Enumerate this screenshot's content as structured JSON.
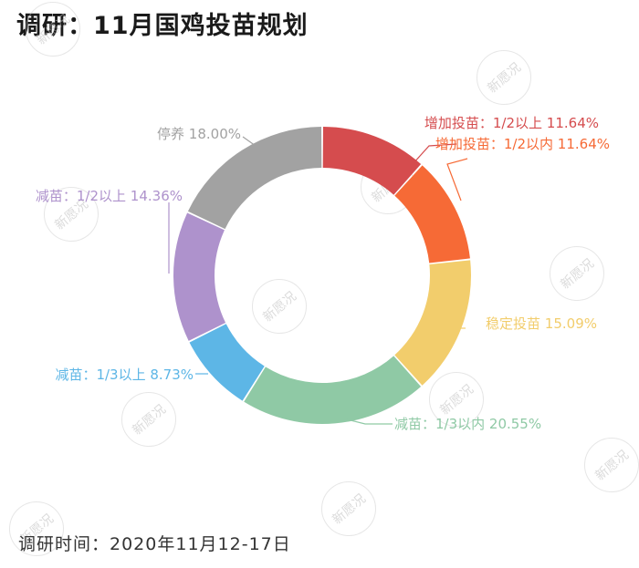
{
  "title": "调研：11月国鸡投苗规划",
  "footer": "调研时间：2020年11月12-17日",
  "watermark_text": "新愿况",
  "chart_data": {
    "type": "pie",
    "donut": true,
    "unit": "%",
    "slices": [
      {
        "label": "增加投苗：1/2以上",
        "value": 11.64,
        "display": "11.64%",
        "color": "#d54c4e"
      },
      {
        "label": "增加投苗：1/2以内",
        "value": 11.64,
        "display": "11.64%",
        "color": "#f66a36"
      },
      {
        "label": "稳定投苗",
        "value": 15.09,
        "display": "15.09%",
        "color": "#f2cd6c"
      },
      {
        "label": "减苗：1/3以内",
        "value": 20.55,
        "display": "20.55%",
        "color": "#8fc9a5"
      },
      {
        "label": "减苗：1/3以上",
        "value": 8.73,
        "display": "8.73%",
        "color": "#5db6e6"
      },
      {
        "label": "减苗：1/2以上",
        "value": 14.36,
        "display": "14.36%",
        "color": "#ae92cc"
      },
      {
        "label": "停养",
        "value": 18.0,
        "display": "18.00%",
        "color": "#a2a2a2"
      }
    ]
  }
}
